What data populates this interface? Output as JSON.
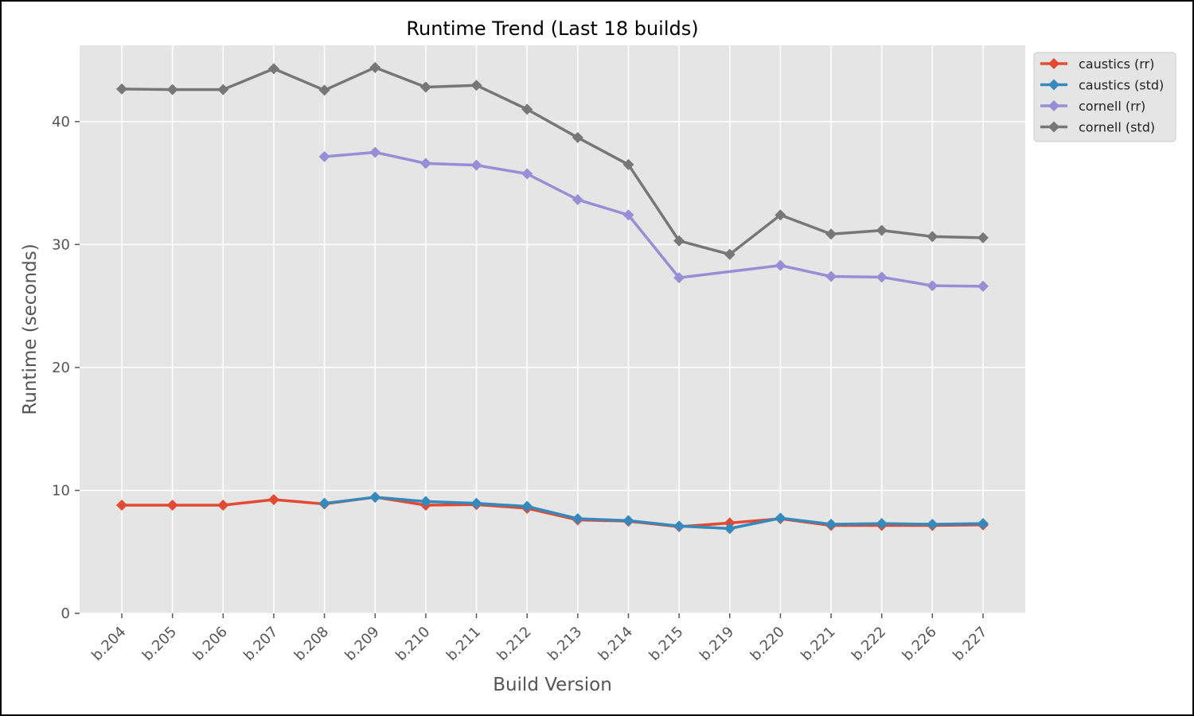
{
  "chart_data": {
    "type": "line",
    "title": "Runtime Trend (Last 18 builds)",
    "xlabel": "Build Version",
    "ylabel": "Runtime (seconds)",
    "categories": [
      "b.204",
      "b.205",
      "b.206",
      "b.207",
      "b.208",
      "b.209",
      "b.210",
      "b.211",
      "b.212",
      "b.213",
      "b.214",
      "b.215",
      "b.219",
      "b.220",
      "b.221",
      "b.222",
      "b.226",
      "b.227"
    ],
    "ylim": [
      0,
      46.2
    ],
    "yticks": [
      0,
      10,
      20,
      30,
      40
    ],
    "grid": true,
    "legend_position": "outside top-right",
    "series": [
      {
        "name": "caustics (rr)",
        "color": "#E24A33",
        "values": [
          8.8,
          8.8,
          8.8,
          9.25,
          8.9,
          9.45,
          8.8,
          8.85,
          8.55,
          7.6,
          7.5,
          7.05,
          7.35,
          7.7,
          7.15,
          7.15,
          7.15,
          7.2
        ]
      },
      {
        "name": "caustics (std)",
        "color": "#348ABD",
        "values": [
          null,
          null,
          null,
          null,
          8.95,
          9.45,
          9.1,
          8.95,
          8.7,
          7.7,
          7.55,
          7.1,
          6.9,
          7.75,
          7.25,
          7.3,
          7.25,
          7.3
        ]
      },
      {
        "name": "cornell (rr)",
        "color": "#988ED5",
        "values": [
          null,
          null,
          null,
          null,
          37.15,
          37.5,
          36.6,
          36.45,
          35.75,
          33.65,
          32.4,
          27.3,
          null,
          28.3,
          27.4,
          27.35,
          26.65,
          26.6
        ]
      },
      {
        "name": "cornell (std)",
        "color": "#777777",
        "values": [
          42.65,
          42.6,
          42.6,
          44.3,
          42.55,
          44.4,
          42.8,
          42.95,
          41.0,
          38.7,
          36.5,
          30.3,
          29.2,
          32.4,
          30.85,
          31.15,
          30.65,
          30.55
        ]
      }
    ]
  }
}
